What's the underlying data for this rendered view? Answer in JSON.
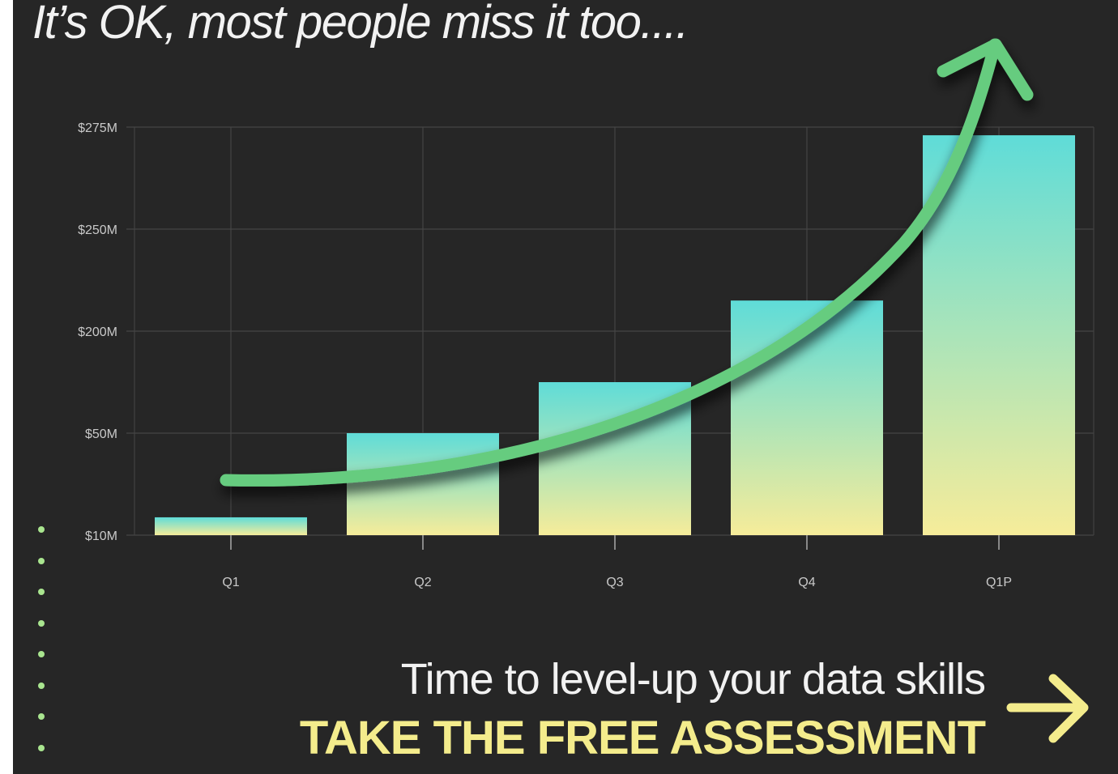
{
  "headline": "It’s OK, most people miss it too....",
  "cta": {
    "subtitle": "Time to level-up your data skills",
    "button_label": "TAKE THE FREE ASSESSMENT",
    "arrow_icon": "right-arrow-icon"
  },
  "colors": {
    "background": "#262626",
    "bar_top": "#5fdcd8",
    "bar_bottom": "#f6ec9a",
    "trend_arrow": "#66cc7f",
    "cta_yellow": "#f4ec8c",
    "dots": "#a9e58f"
  },
  "chart_data": {
    "type": "bar",
    "categories": [
      "Q1",
      "Q2",
      "Q3",
      "Q4",
      "Q1P"
    ],
    "values": [
      17,
      50,
      125,
      215,
      273
    ],
    "ytick_labels": [
      "$10M",
      "$50M",
      "$200M",
      "$250M",
      "$275M"
    ],
    "ylim_note": "non-linear axis; ticks as printed",
    "grid": true,
    "legend": "none",
    "annotation": "green upward trend arrow over bars",
    "title": "",
    "xlabel": "",
    "ylabel": ""
  }
}
